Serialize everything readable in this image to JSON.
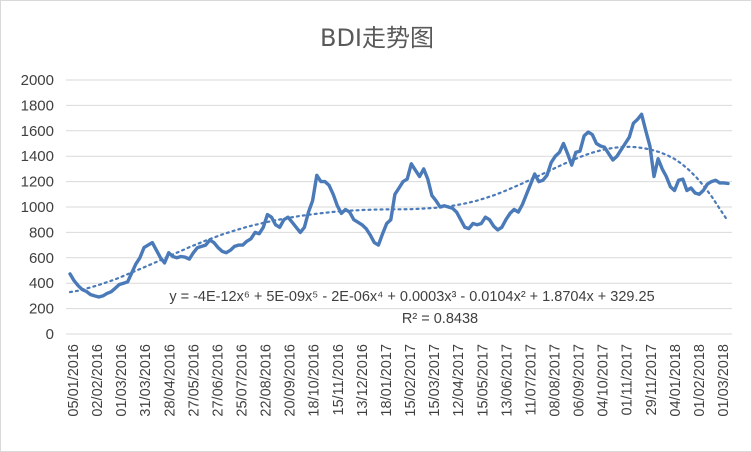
{
  "chart_data": {
    "type": "line",
    "title": "BDI走势图",
    "xlabel": "",
    "ylabel": "",
    "ylim": [
      0,
      2000
    ],
    "yticks": [
      0,
      200,
      400,
      600,
      800,
      1000,
      1200,
      1400,
      1600,
      1800,
      2000
    ],
    "grid": "horizontal",
    "legend": "none",
    "x_tick_labels": [
      "05/01/2016",
      "02/02/2016",
      "01/03/2016",
      "31/03/2016",
      "28/04/2016",
      "27/05/2016",
      "27/06/2016",
      "25/07/2016",
      "22/08/2016",
      "20/09/2016",
      "18/10/2016",
      "15/11/2016",
      "13/12/2016",
      "18/01/2017",
      "15/02/2017",
      "15/03/2017",
      "12/04/2017",
      "15/05/2017",
      "13/06/2017",
      "11/07/2017",
      "08/08/2017",
      "06/09/2017",
      "04/10/2017",
      "01/11/2017",
      "29/11/2017",
      "04/01/2018",
      "01/02/2018",
      "01/03/2018"
    ],
    "series": [
      {
        "values": [
          473,
          420,
          380,
          350,
          335,
          310,
          300,
          291,
          300,
          320,
          332,
          360,
          390,
          400,
          410,
          480,
          550,
          600,
          680,
          700,
          720,
          660,
          600,
          560,
          640,
          610,
          600,
          610,
          605,
          590,
          640,
          680,
          690,
          700,
          740,
          720,
          680,
          650,
          640,
          660,
          690,
          700,
          700,
          730,
          750,
          800,
          790,
          840,
          940,
          920,
          860,
          840,
          900,
          920,
          880,
          840,
          800,
          840,
          960,
          1050,
          1250,
          1200,
          1200,
          1170,
          1100,
          1010,
          950,
          980,
          960,
          900,
          880,
          860,
          830,
          780,
          720,
          700,
          790,
          870,
          900,
          1100,
          1150,
          1200,
          1220,
          1340,
          1290,
          1240,
          1300,
          1220,
          1090,
          1050,
          1000,
          1010,
          1000,
          990,
          960,
          900,
          840,
          830,
          870,
          860,
          870,
          920,
          900,
          850,
          820,
          840,
          900,
          950,
          980,
          960,
          1020,
          1100,
          1180,
          1260,
          1200,
          1210,
          1250,
          1350,
          1400,
          1430,
          1500,
          1420,
          1330,
          1430,
          1440,
          1560,
          1590,
          1570,
          1500,
          1480,
          1470,
          1420,
          1370,
          1400,
          1450,
          1500,
          1550,
          1660,
          1690,
          1730,
          1600,
          1480,
          1240,
          1380,
          1300,
          1240,
          1160,
          1130,
          1210,
          1220,
          1130,
          1150,
          1110,
          1100,
          1130,
          1180,
          1200,
          1210,
          1190,
          1190,
          1185
        ]
      }
    ],
    "trendline": {
      "type": "polynomial",
      "order": 6,
      "style": "dotted",
      "values": [
        330,
        340,
        355,
        372,
        390,
        410,
        431,
        455,
        480,
        505,
        530,
        556,
        582,
        610,
        636,
        662,
        688,
        712,
        736,
        758,
        780,
        800,
        818,
        836,
        852,
        866,
        880,
        893,
        904,
        915,
        925,
        934,
        942,
        950,
        956,
        962,
        967,
        971,
        974,
        977,
        979,
        980,
        981,
        982,
        982,
        983,
        985,
        988,
        992,
        997,
        1004,
        1013,
        1024,
        1037,
        1052,
        1070,
        1090,
        1112,
        1136,
        1162,
        1188,
        1216,
        1244,
        1272,
        1300,
        1328,
        1355,
        1380,
        1404,
        1425,
        1442,
        1456,
        1466,
        1472,
        1474,
        1471,
        1463,
        1450,
        1433,
        1410,
        1380,
        1340,
        1290,
        1230,
        1160,
        1080,
        990,
        900
      ]
    },
    "equation": "y = -4E-12x⁶ + 5E-09x⁵ - 2E-06x⁴ + 0.0003x³ - 0.0104x² + 1.8704x + 329.25",
    "r_squared": "R² = 0.8438",
    "colors": {
      "line": "#4a7ab8",
      "trendline": "#4a7ab8",
      "grid": "#d9d9d9",
      "text": "#404040"
    }
  }
}
